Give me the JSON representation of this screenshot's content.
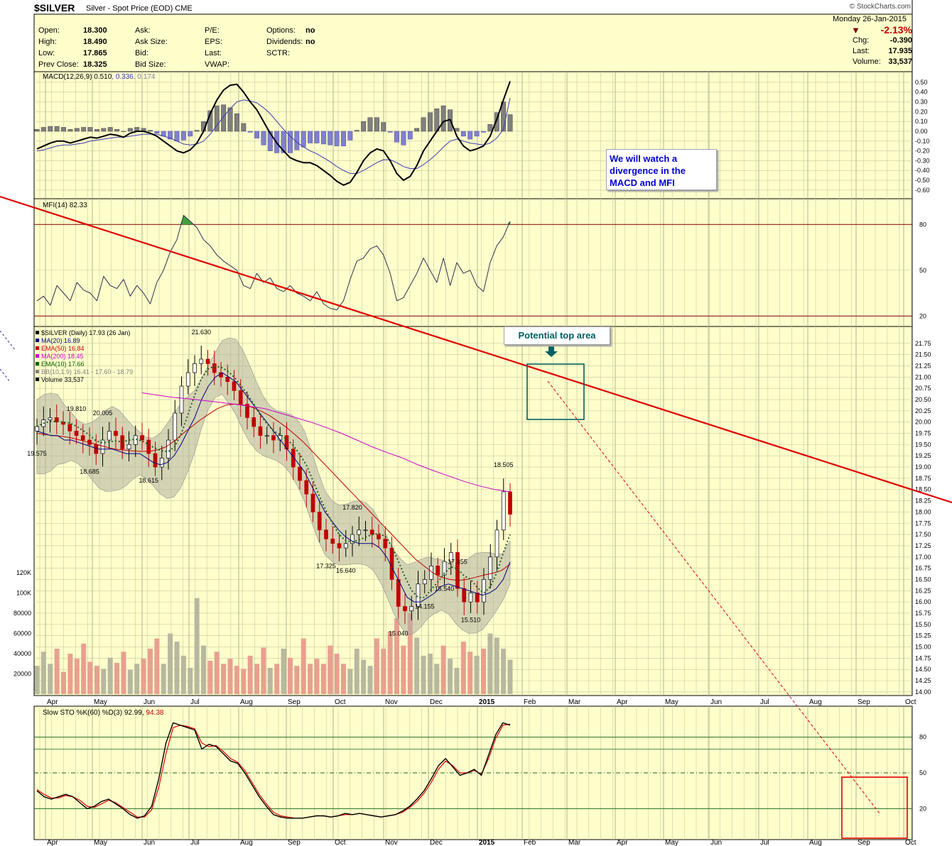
{
  "header": {
    "symbol": "$SILVER",
    "description": "Silver - Spot Price (EOD)  CME",
    "copyright": "© StockCharts.com",
    "date": "Monday  26-Jan-2015",
    "change_pct": "-2.13%",
    "stats_left": [
      {
        "label": "Open:",
        "value": "18.300"
      },
      {
        "label": "High:",
        "value": "18.490"
      },
      {
        "label": "Low:",
        "value": "17.865"
      },
      {
        "label": "Prev Close:",
        "value": "18.325"
      }
    ],
    "stats_mid": [
      {
        "label": "Ask:",
        "value": ""
      },
      {
        "label": "Ask Size:",
        "value": ""
      },
      {
        "label": "Bid:",
        "value": ""
      },
      {
        "label": "Bid Size:",
        "value": ""
      }
    ],
    "stats_mid2": [
      {
        "label": "P/E:",
        "value": ""
      },
      {
        "label": "EPS:",
        "value": ""
      },
      {
        "label": "Last:",
        "value": ""
      },
      {
        "label": "VWAP:",
        "value": ""
      }
    ],
    "stats_right": [
      {
        "label": "Options:",
        "value": "no"
      },
      {
        "label": "Dividends:",
        "value": "no"
      },
      {
        "label": "SCTR:",
        "value": ""
      }
    ],
    "stats_far_right": [
      {
        "label": "Chg:",
        "value": "-0.390"
      },
      {
        "label": "Last:",
        "value": "17.935"
      },
      {
        "label": "Volume:",
        "value": "33,537"
      }
    ]
  },
  "annotations": {
    "note": "We will watch a divergence in the MACD and MFI",
    "top_area": "Potential top area"
  },
  "chart_data": [
    {
      "type": "line",
      "panel": "macd",
      "legend": [
        "MACD(12,26,9)",
        "0.510",
        "0.336",
        "0.174"
      ],
      "legend_colors": [
        "#000000",
        "#000000",
        "#3b3bb3",
        "#8080a0"
      ],
      "yticks": [
        "0.50",
        "0.40",
        "0.30",
        "0.20",
        "0.10",
        "0.00",
        "-0.10",
        "-0.20",
        "-0.30",
        "-0.40",
        "-0.50",
        "-0.60"
      ],
      "ylim": [
        -0.63,
        0.55
      ],
      "macd": [
        -0.18,
        -0.15,
        -0.12,
        -0.1,
        -0.1,
        -0.12,
        -0.1,
        -0.08,
        -0.06,
        -0.07,
        -0.05,
        -0.03,
        -0.04,
        -0.06,
        -0.02,
        0.0,
        0.0,
        -0.02,
        -0.05,
        -0.1,
        -0.15,
        -0.2,
        -0.22,
        -0.19,
        -0.12,
        0.0,
        0.18,
        0.32,
        0.42,
        0.47,
        0.48,
        0.4,
        0.3,
        0.22,
        0.1,
        -0.02,
        -0.12,
        -0.2,
        -0.27,
        -0.3,
        -0.32,
        -0.32,
        -0.35,
        -0.4,
        -0.45,
        -0.51,
        -0.55,
        -0.52,
        -0.42,
        -0.3,
        -0.22,
        -0.18,
        -0.2,
        -0.3,
        -0.43,
        -0.5,
        -0.46,
        -0.35,
        -0.2,
        -0.1,
        0.0,
        0.1,
        0.12,
        -0.05,
        -0.15,
        -0.2,
        -0.18,
        -0.15,
        -0.05,
        0.12,
        0.32,
        0.51
      ],
      "signal": [
        -0.2,
        -0.19,
        -0.17,
        -0.15,
        -0.14,
        -0.14,
        -0.13,
        -0.12,
        -0.1,
        -0.09,
        -0.08,
        -0.07,
        -0.06,
        -0.06,
        -0.05,
        -0.04,
        -0.03,
        -0.03,
        -0.03,
        -0.05,
        -0.07,
        -0.1,
        -0.13,
        -0.14,
        -0.13,
        -0.1,
        -0.03,
        0.06,
        0.15,
        0.23,
        0.3,
        0.32,
        0.31,
        0.29,
        0.24,
        0.18,
        0.1,
        0.02,
        -0.05,
        -0.11,
        -0.16,
        -0.2,
        -0.23,
        -0.27,
        -0.31,
        -0.36,
        -0.4,
        -0.43,
        -0.43,
        -0.4,
        -0.36,
        -0.32,
        -0.29,
        -0.29,
        -0.32,
        -0.36,
        -0.38,
        -0.38,
        -0.34,
        -0.29,
        -0.23,
        -0.16,
        -0.1,
        -0.08,
        -0.1,
        -0.12,
        -0.13,
        -0.14,
        -0.12,
        -0.07,
        0.02,
        0.34
      ],
      "hist": [
        0.02,
        0.04,
        0.05,
        0.05,
        0.04,
        0.02,
        0.03,
        0.04,
        0.04,
        0.02,
        0.03,
        0.04,
        0.02,
        0.0,
        0.03,
        0.04,
        0.03,
        0.01,
        -0.02,
        -0.05,
        -0.08,
        -0.1,
        -0.09,
        -0.05,
        0.01,
        0.1,
        0.21,
        0.26,
        0.27,
        0.24,
        0.18,
        0.08,
        -0.01,
        -0.07,
        -0.14,
        -0.2,
        -0.22,
        -0.22,
        -0.22,
        -0.19,
        -0.16,
        -0.12,
        -0.12,
        -0.13,
        -0.14,
        -0.15,
        -0.15,
        -0.09,
        0.01,
        0.1,
        0.14,
        0.14,
        0.09,
        -0.01,
        -0.11,
        -0.14,
        -0.08,
        0.03,
        0.14,
        0.19,
        0.23,
        0.26,
        0.22,
        0.03,
        -0.05,
        -0.08,
        -0.05,
        -0.01,
        0.07,
        0.19,
        0.3,
        0.17
      ]
    },
    {
      "type": "line",
      "panel": "mfi",
      "legend": [
        "MFI(14)",
        "82.33"
      ],
      "yticks": [
        "80",
        "50",
        "20"
      ],
      "ylim": [
        15,
        95
      ],
      "values": [
        30,
        33,
        27,
        40,
        35,
        30,
        42,
        37,
        35,
        30,
        46,
        40,
        38,
        44,
        33,
        40,
        35,
        28,
        42,
        50,
        62,
        70,
        86,
        82,
        78,
        70,
        66,
        60,
        56,
        53,
        50,
        40,
        38,
        48,
        42,
        45,
        38,
        36,
        40,
        35,
        33,
        30,
        36,
        28,
        25,
        24,
        30,
        44,
        56,
        58,
        64,
        66,
        60,
        48,
        30,
        32,
        40,
        48,
        58,
        50,
        42,
        58,
        40,
        55,
        48,
        50,
        40,
        36,
        55,
        66,
        72,
        82
      ]
    },
    {
      "type": "candlestick",
      "panel": "price",
      "legend": [
        {
          "text": "$SILVER (Daily) 17.93 (26 Jan)",
          "color": "#000000"
        },
        {
          "text": "MA(20) 16.89",
          "color": "#000080"
        },
        {
          "text": "EMA(50) 16.84",
          "color": "#c00000"
        },
        {
          "text": "MA(200) 18.45",
          "color": "#cc00cc"
        },
        {
          "text": "EMA(10) 17.66",
          "color": "#006000"
        },
        {
          "text": "BB(10,1.9) 16.41 - 17.60 - 18.79",
          "color": "#808080"
        },
        {
          "text": "Volume 33,537",
          "color": "#000000"
        }
      ],
      "yticks": [
        "21.75",
        "21.50",
        "21.25",
        "21.00",
        "20.75",
        "20.50",
        "20.25",
        "20.00",
        "19.75",
        "19.50",
        "19.25",
        "19.00",
        "18.75",
        "18.50",
        "18.25",
        "18.00",
        "17.75",
        "17.50",
        "17.25",
        "17.00",
        "16.75",
        "16.50",
        "16.25",
        "16.00",
        "15.75",
        "15.50",
        "15.25",
        "15.00",
        "14.75",
        "14.50",
        "14.25",
        "14.00"
      ],
      "ylim": [
        13.95,
        22.0
      ],
      "close": [
        19.9,
        20.05,
        20.1,
        20.0,
        19.95,
        19.8,
        19.7,
        19.6,
        19.5,
        19.3,
        19.6,
        19.8,
        19.7,
        19.4,
        19.5,
        19.7,
        19.6,
        19.3,
        19.0,
        19.2,
        19.6,
        20.2,
        20.8,
        21.1,
        21.3,
        21.4,
        21.3,
        21.1,
        21.0,
        20.9,
        20.7,
        20.4,
        20.1,
        19.9,
        19.7,
        19.7,
        19.6,
        19.7,
        19.4,
        19.0,
        18.7,
        18.4,
        18.0,
        17.6,
        17.4,
        17.3,
        17.2,
        17.3,
        17.5,
        17.6,
        17.6,
        17.5,
        17.4,
        17.2,
        16.5,
        15.9,
        15.8,
        15.9,
        16.4,
        16.5,
        16.8,
        16.6,
        16.9,
        17.1,
        16.3,
        16.0,
        16.2,
        16.0,
        16.5,
        17.0,
        17.6,
        18.45,
        17.95
      ],
      "ma20": [
        19.8,
        19.75,
        19.7,
        19.7,
        19.6,
        19.6,
        19.55,
        19.5,
        19.45,
        19.4,
        19.4,
        19.4,
        19.35,
        19.3,
        19.3,
        19.3,
        19.2,
        19.1,
        19.05,
        19.1,
        19.25,
        19.5,
        19.8,
        20.1,
        20.5,
        20.8,
        21.0,
        21.1,
        21.0,
        20.9,
        20.7,
        20.5,
        20.3,
        20.1,
        19.9,
        19.7,
        19.5,
        19.3,
        19.1,
        18.9,
        18.6,
        18.3,
        18.0,
        17.8,
        17.6,
        17.45,
        17.35,
        17.3,
        17.3,
        17.3,
        17.2,
        17.0,
        16.7,
        16.4,
        16.1,
        16.0,
        16.0,
        16.1,
        16.2,
        16.35,
        16.4,
        16.35,
        16.3,
        16.25,
        16.2,
        16.15,
        16.2,
        16.3,
        16.5,
        16.89
      ],
      "ema50": [
        19.75,
        19.72,
        19.7,
        19.68,
        19.65,
        19.6,
        19.55,
        19.5,
        19.45,
        19.4,
        19.38,
        19.36,
        19.35,
        19.35,
        19.38,
        19.45,
        19.58,
        19.75,
        19.9,
        20.05,
        20.18,
        20.3,
        20.38,
        20.4,
        20.38,
        20.33,
        20.25,
        20.15,
        20.02,
        19.88,
        19.72,
        19.55,
        19.35,
        19.15,
        18.95,
        18.75,
        18.55,
        18.35,
        18.15,
        17.95,
        17.75,
        17.55,
        17.35,
        17.15,
        16.95,
        16.8,
        16.65,
        16.55,
        16.5,
        16.48,
        16.5,
        16.55,
        16.6,
        16.64,
        16.7,
        16.84
      ],
      "ma200": [
        20.65,
        20.6,
        20.55,
        20.52,
        20.48,
        20.44,
        20.4,
        20.35,
        20.3,
        20.2,
        20.1,
        20.0,
        19.88,
        19.75,
        19.6,
        19.45,
        19.32,
        19.2,
        19.05,
        18.92,
        18.8,
        18.68,
        18.58,
        18.5,
        18.45
      ],
      "labels": [
        {
          "text": "19.575",
          "i": 0,
          "pos": "below"
        },
        {
          "text": "19.810",
          "i": 6,
          "pos": "above"
        },
        {
          "text": "20.005",
          "i": 10,
          "pos": "above"
        },
        {
          "text": "18.685",
          "i": 8,
          "pos": "below"
        },
        {
          "text": "18.615",
          "i": 17,
          "pos": "below"
        },
        {
          "text": "21.630",
          "i": 25,
          "pos": "above"
        },
        {
          "text": "17.820",
          "i": 48,
          "pos": "above"
        },
        {
          "text": "17.325",
          "i": 44,
          "pos": "below"
        },
        {
          "text": "16.640",
          "i": 47,
          "pos": "below"
        },
        {
          "text": "17.355",
          "i": 64,
          "pos": "above"
        },
        {
          "text": "15.040",
          "i": 55,
          "pos": "below"
        },
        {
          "text": "14.155",
          "i": 59,
          "pos": "below"
        },
        {
          "text": "15.540",
          "i": 62,
          "pos": "below"
        },
        {
          "text": "15.510",
          "i": 66,
          "pos": "below"
        },
        {
          "text": "18.505",
          "i": 71,
          "pos": "above"
        }
      ]
    },
    {
      "type": "bar",
      "panel": "volume",
      "yticks": [
        "120K",
        "100K",
        "80000",
        "60000",
        "40000",
        "20000"
      ],
      "ylim": [
        0,
        125000
      ],
      "values": [
        28000,
        42000,
        30000,
        45000,
        22000,
        40000,
        35000,
        50000,
        32000,
        28000,
        25000,
        36000,
        31000,
        42000,
        24000,
        30000,
        35000,
        45000,
        55000,
        30000,
        60000,
        52000,
        38000,
        26000,
        95000,
        48000,
        33000,
        42000,
        30000,
        35000,
        28000,
        25000,
        38000,
        30000,
        46000,
        26000,
        30000,
        45000,
        36000,
        28000,
        55000,
        30000,
        35000,
        30000,
        48000,
        40000,
        30000,
        25000,
        45000,
        34000,
        28000,
        55000,
        45000,
        62000,
        75000,
        48000,
        80000,
        56000,
        38000,
        40000,
        30000,
        48000,
        35000,
        26000,
        52000,
        42000,
        38000,
        45000,
        60000,
        56000,
        45000,
        34000
      ]
    },
    {
      "type": "line",
      "panel": "stochastic",
      "legend": [
        "Slow STO %K(60) %D(3)",
        "92.99",
        "94.38"
      ],
      "yticks": [
        "80",
        "50",
        "20"
      ],
      "ylim": [
        0,
        100
      ],
      "k": [
        35,
        30,
        28,
        30,
        32,
        30,
        25,
        20,
        22,
        26,
        28,
        24,
        20,
        15,
        12,
        14,
        22,
        45,
        75,
        92,
        90,
        88,
        86,
        70,
        74,
        72,
        66,
        60,
        58,
        50,
        40,
        30,
        22,
        15,
        13,
        12,
        12,
        12,
        13,
        14,
        14,
        13,
        14,
        16,
        15,
        16,
        15,
        14,
        13,
        14,
        15,
        18,
        22,
        28,
        35,
        45,
        56,
        62,
        55,
        48,
        50,
        53,
        48,
        65,
        82,
        92,
        90
      ],
      "d": [
        36,
        32,
        29,
        29,
        31,
        30,
        27,
        22,
        21,
        24,
        27,
        25,
        21,
        17,
        13,
        13,
        19,
        38,
        66,
        88,
        90,
        89,
        87,
        75,
        72,
        73,
        68,
        62,
        59,
        52,
        42,
        32,
        24,
        17,
        14,
        13,
        12,
        12,
        13,
        14,
        14,
        13,
        14,
        15,
        15,
        16,
        15,
        14,
        13,
        14,
        15,
        17,
        21,
        26,
        33,
        42,
        53,
        60,
        56,
        50,
        50,
        52,
        49,
        62,
        79,
        90,
        91
      ]
    }
  ],
  "x_axis": {
    "months": [
      "Apr",
      "May",
      "Jun",
      "Jul",
      "Aug",
      "Sep",
      "Oct",
      "Nov",
      "Dec",
      "2015",
      "Feb",
      "Mar",
      "Apr",
      "May",
      "Jun",
      "Jul",
      "Aug",
      "Sep",
      "Oct"
    ]
  }
}
